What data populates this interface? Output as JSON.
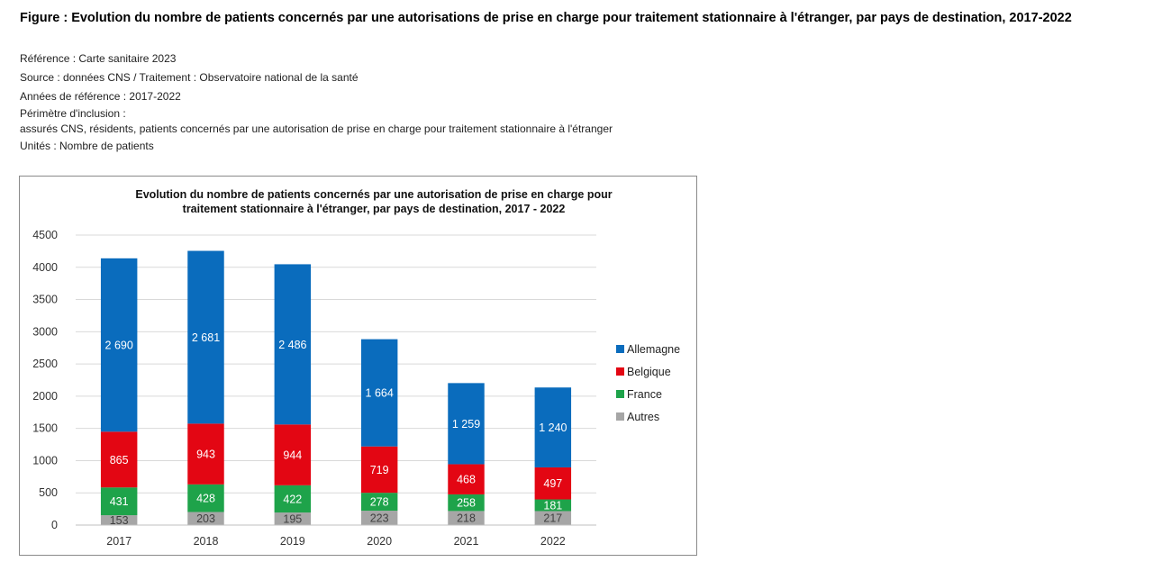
{
  "figure_title": "Figure : Evolution du nombre de patients concernés par une autorisations de prise en charge pour traitement stationnaire à l'étranger, par pays de destination, 2017-2022",
  "meta": {
    "reference": "Référence : Carte sanitaire 2023",
    "source": "Source : données CNS / Traitement : Observatoire national de la santé",
    "annees": "Années de référence : 2017-2022",
    "perimetre_label": "Périmètre d'inclusion :",
    "perimetre_text": "assurés CNS, résidents, patients concernés par une autorisation de prise en charge pour traitement stationnaire à l'étranger",
    "unites": "Unités : Nombre de patients"
  },
  "chart_data": {
    "type": "bar",
    "stacked": true,
    "title_lines": [
      "Evolution du nombre de patients concernés par une autorisation de prise en charge pour",
      "traitement stationnaire à l'étranger, par pays de destination, 2017 - 2022"
    ],
    "categories": [
      "2017",
      "2018",
      "2019",
      "2020",
      "2021",
      "2022"
    ],
    "ylim": [
      0,
      4500
    ],
    "yticks": [
      0,
      500,
      1000,
      1500,
      2000,
      2500,
      3000,
      3500,
      4000,
      4500
    ],
    "grid": true,
    "legend_position": "right",
    "series": [
      {
        "name": "Autres",
        "color": "#a6a6a6",
        "label_color": "#404040",
        "values": [
          153,
          203,
          195,
          223,
          218,
          217
        ],
        "labels": [
          "153",
          "203",
          "195",
          "223",
          "218",
          "217"
        ]
      },
      {
        "name": "France",
        "color": "#1ea34a",
        "label_color": "#ffffff",
        "values": [
          431,
          428,
          422,
          278,
          258,
          181
        ],
        "labels": [
          "431",
          "428",
          "422",
          "278",
          "258",
          "181"
        ]
      },
      {
        "name": "Belgique",
        "color": "#e30613",
        "label_color": "#ffffff",
        "values": [
          865,
          943,
          944,
          719,
          468,
          497
        ],
        "labels": [
          "865",
          "943",
          "944",
          "719",
          "468",
          "497"
        ]
      },
      {
        "name": "Allemagne",
        "color": "#0a6cbd",
        "label_color": "#ffffff",
        "values": [
          2690,
          2681,
          2486,
          1664,
          1259,
          1240
        ],
        "labels": [
          "2 690",
          "2 681",
          "2 486",
          "1 664",
          "1 259",
          "1 240"
        ]
      }
    ],
    "legend_order": [
      "Allemagne",
      "Belgique",
      "France",
      "Autres"
    ]
  }
}
